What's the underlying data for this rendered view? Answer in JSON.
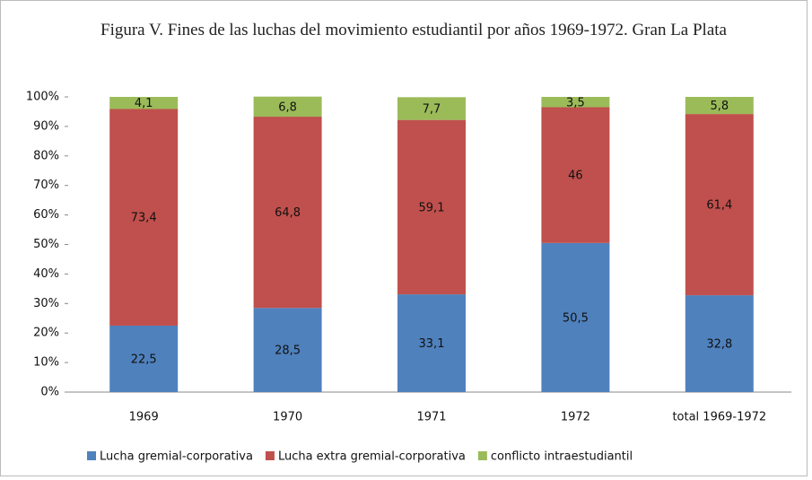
{
  "chart_data": {
    "type": "stacked_bar",
    "title": "Figura V. Fines de las luchas del movimiento estudiantil por años 1969-1972. Gran La Plata",
    "categories": [
      "1969",
      "1970",
      "1971",
      "1972",
      "total 1969-1972"
    ],
    "series": [
      {
        "name": "Lucha gremial-corporativa",
        "color": "#4f81bd",
        "values": [
          22.5,
          28.5,
          33.1,
          50.5,
          32.8
        ],
        "value_labels": [
          "22,5",
          "28,5",
          "33,1",
          "50,5",
          "32,8"
        ]
      },
      {
        "name": "Lucha extra gremial-corporativa",
        "color": "#c0504d",
        "values": [
          73.4,
          64.8,
          59.1,
          46,
          61.4
        ],
        "value_labels": [
          "73,4",
          "64,8",
          "59,1",
          "46",
          "61,4"
        ]
      },
      {
        "name": "conflicto intraestudiantil",
        "color": "#9bbb59",
        "values": [
          4.1,
          6.8,
          7.7,
          3.5,
          5.8
        ],
        "value_labels": [
          "4,1",
          "6,8",
          "7,7",
          "3,5",
          "5,8"
        ]
      }
    ],
    "ylim": [
      0,
      100
    ],
    "yticks": [
      {
        "value": 0,
        "label": "0%"
      },
      {
        "value": 10,
        "label": "10%"
      },
      {
        "value": 20,
        "label": "20%"
      },
      {
        "value": 30,
        "label": "30%"
      },
      {
        "value": 40,
        "label": "40%"
      },
      {
        "value": 50,
        "label": "50%"
      },
      {
        "value": 60,
        "label": "60%"
      },
      {
        "value": 70,
        "label": "70%"
      },
      {
        "value": 80,
        "label": "80%"
      },
      {
        "value": 90,
        "label": "90%"
      },
      {
        "value": 100,
        "label": "100%"
      }
    ],
    "legend": "bottom"
  }
}
